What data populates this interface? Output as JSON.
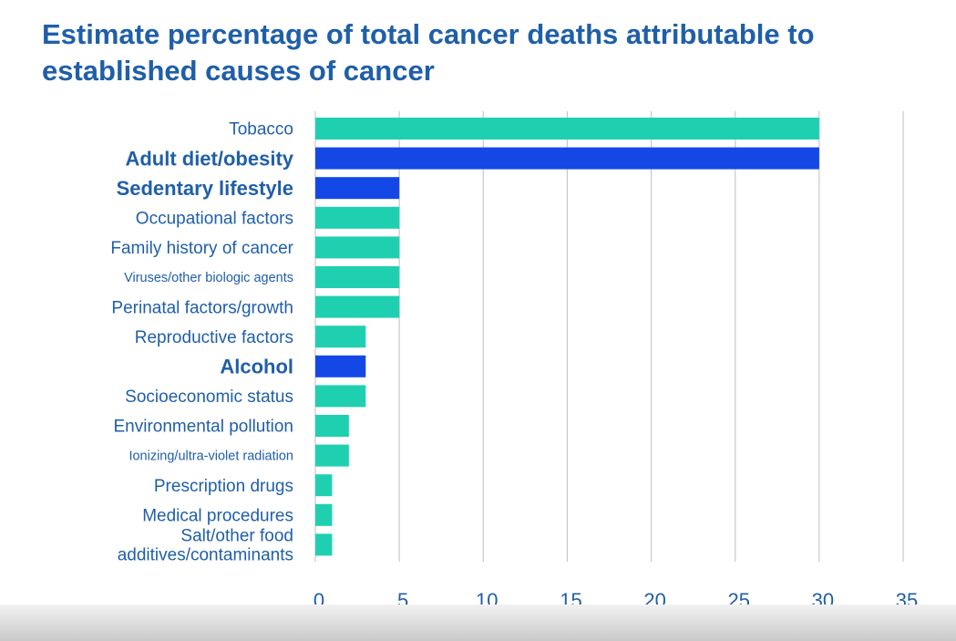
{
  "chart_data": {
    "type": "bar",
    "orientation": "horizontal",
    "title_lines": [
      "Estimate percentage of total cancer deaths attributable to",
      "established causes of cancer"
    ],
    "categories": [
      "Tobacco",
      "Adult diet/obesity",
      "Sedentary lifestyle",
      "Occupational factors",
      "Family history of cancer",
      "Viruses/other biologic agents",
      "Perinatal factors/growth",
      "Reproductive factors",
      "Alcohol",
      "Socioeconomic status",
      "Environmental pollution",
      "Ionizing/ultra-violet radiation",
      "Prescription drugs",
      "Medical procedures",
      [
        "Salt/other food",
        "additives/contaminants"
      ]
    ],
    "values": [
      30,
      30,
      5,
      5,
      5,
      5,
      5,
      3,
      3,
      3,
      2,
      2,
      1,
      1,
      1
    ],
    "emphasized": [
      false,
      true,
      true,
      false,
      false,
      false,
      false,
      false,
      true,
      false,
      false,
      false,
      false,
      false,
      false
    ],
    "label_style": [
      "normal",
      "bold",
      "bold",
      "normal",
      "normal",
      "small",
      "normal",
      "normal",
      "bold",
      "normal",
      "normal",
      "small",
      "normal",
      "normal",
      "normal"
    ],
    "xlim": [
      0,
      35
    ],
    "xticks": [
      0,
      5,
      10,
      15,
      20,
      25,
      30,
      35
    ],
    "grid": true,
    "colors": {
      "normal": "#1fd0b0",
      "emphasized": "#1448e6",
      "text": "#1f5fa8",
      "grid": "#c8c8c8"
    }
  }
}
